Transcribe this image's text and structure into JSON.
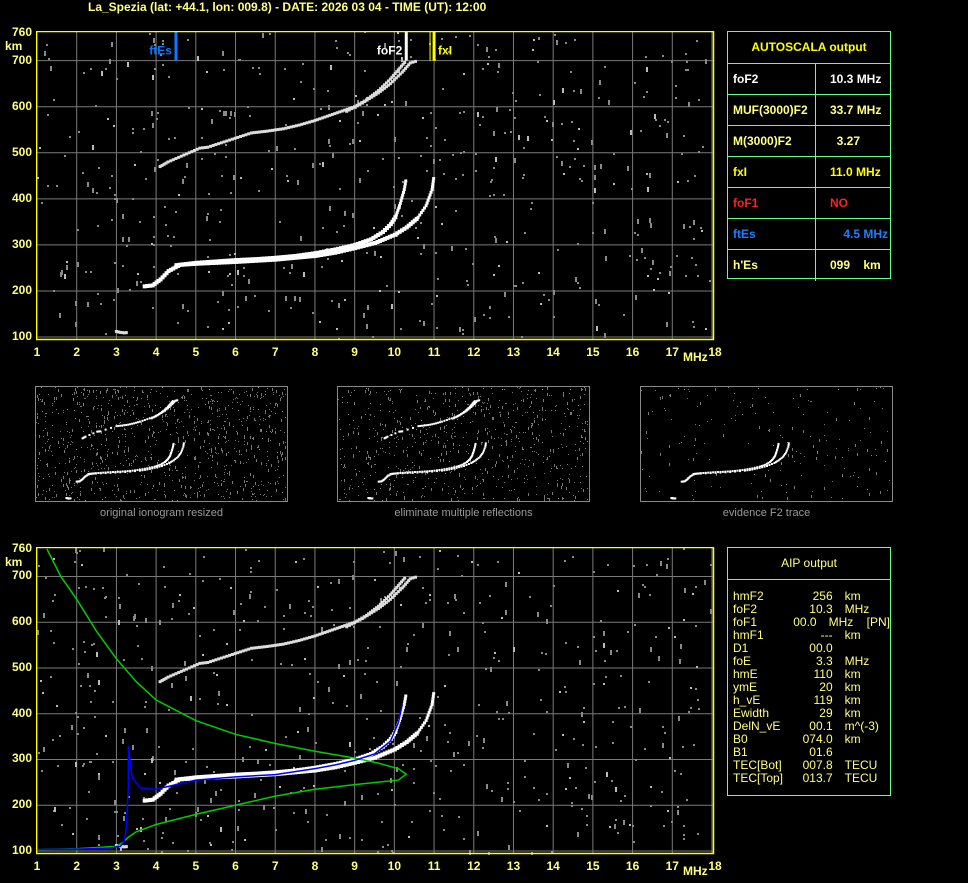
{
  "header": {
    "title": "La_Spezia (lat: +44.1, lon: 009.8) - DATE: 2026 03 04 - TIME (UT): 12:00"
  },
  "axes": {
    "y_ticks": [
      "760",
      "700",
      "600",
      "500",
      "400",
      "300",
      "200",
      "100"
    ],
    "y_unit": "km",
    "x_ticks": [
      "1",
      "2",
      "3",
      "4",
      "5",
      "6",
      "7",
      "8",
      "9",
      "10",
      "11",
      "12",
      "13",
      "14",
      "15",
      "16",
      "17",
      "18"
    ],
    "x_unit": "MHz"
  },
  "markers": {
    "ftEs": "ftEs",
    "foF2": "foF2",
    "fxI": "fxI"
  },
  "colors": {
    "frame": "#ffff00",
    "grid": "#808080",
    "trace": "#ffffff",
    "ftEs": "#0a78ff",
    "foF1": "#ff0000",
    "table_border": "#66ff88",
    "profile": "#00cc00",
    "blue_trace": "#0000ff"
  },
  "autoscala": {
    "title": "AUTOSCALA output",
    "rows": [
      {
        "key": "foF2",
        "value": "10.3 MHz",
        "color": "#ffffff"
      },
      {
        "key": "MUF(3000)F2",
        "value": "33.7 MHz",
        "color": "#ffff80"
      },
      {
        "key": "M(3000)F2",
        "value": "  3.27",
        "color": "#ffff80"
      },
      {
        "key": "fxI",
        "value": "11.0 MHz",
        "color": "#ffff00"
      },
      {
        "key": "foF1",
        "value": "NO",
        "color": "#ff2020"
      },
      {
        "key": "ftEs",
        "value": "    4.5 MHz",
        "color": "#1a80ff"
      },
      {
        "key": "h'Es",
        "value": "099    km",
        "color": "#ffff80"
      }
    ]
  },
  "thumbnails": [
    {
      "caption": "original ionogram resized"
    },
    {
      "caption": "eliminate multiple reflections"
    },
    {
      "caption": "evidence F2 trace"
    }
  ],
  "aip": {
    "title": "AIP output",
    "rows": [
      [
        "hmF2",
        "256",
        "km",
        ""
      ],
      [
        "foF2",
        "10.3",
        "MHz",
        ""
      ],
      [
        "foF1",
        "00.0",
        "MHz",
        "[PN]"
      ],
      [
        "hmF1",
        "---",
        "km",
        ""
      ],
      [
        "D1",
        "00.0",
        "",
        ""
      ],
      [
        "foE",
        "3.3",
        "MHz",
        ""
      ],
      [
        "hmE",
        "110",
        "km",
        ""
      ],
      [
        "ymE",
        "20",
        "km",
        ""
      ],
      [
        "h_vE",
        "119",
        "km",
        ""
      ],
      [
        "Ewidth",
        "29",
        "km",
        ""
      ],
      [
        "DelN_vE",
        "00.1",
        "m^(-3)",
        ""
      ],
      [
        "B0",
        "074.0",
        "km",
        ""
      ],
      [
        "B1",
        "01.6",
        "",
        ""
      ],
      [
        "TEC[Bot]",
        "007.8",
        "TECU",
        ""
      ],
      [
        "TEC[Top]",
        "013.7",
        "TECU",
        ""
      ]
    ]
  },
  "chart_data": [
    {
      "type": "scatter",
      "xlabel": "MHz",
      "ylabel": "km",
      "xlim": [
        1,
        18
      ],
      "ylim": [
        100,
        760
      ],
      "grid": true,
      "vlines": [
        {
          "name": "ftEs",
          "x": 4.5
        },
        {
          "name": "foF2",
          "x": 10.3
        },
        {
          "name": "fxI",
          "x": 11.0
        }
      ],
      "series": [
        {
          "points": [
            [
              3.7,
              210
            ],
            [
              3.9,
              212
            ],
            [
              4.1,
              225
            ],
            [
              4.3,
              243
            ],
            [
              4.6,
              257
            ],
            [
              5,
              261
            ],
            [
              5.5,
              264
            ],
            [
              6,
              267
            ],
            [
              6.5,
              269
            ],
            [
              7,
              272
            ],
            [
              7.5,
              276
            ],
            [
              8,
              282
            ],
            [
              8.5,
              290
            ],
            [
              9,
              300
            ],
            [
              9.4,
              312
            ],
            [
              9.7,
              328
            ],
            [
              9.9,
              345
            ],
            [
              10.05,
              365
            ],
            [
              10.15,
              390
            ],
            [
              10.25,
              420
            ],
            [
              10.3,
              445
            ]
          ]
        },
        {
          "points": [
            [
              4.5,
              256
            ],
            [
              5,
              259
            ],
            [
              6,
              263
            ],
            [
              7,
              268
            ],
            [
              8,
              276
            ],
            [
              8.5,
              283
            ],
            [
              9,
              293
            ],
            [
              9.5,
              304
            ],
            [
              10,
              322
            ],
            [
              10.3,
              338
            ],
            [
              10.6,
              360
            ],
            [
              10.8,
              385
            ],
            [
              10.95,
              420
            ],
            [
              11.0,
              450
            ]
          ]
        },
        {
          "points": [
            [
              4.1,
              470
            ],
            [
              4.3,
              480
            ],
            [
              5.1,
              510
            ],
            [
              5.3,
              512
            ],
            [
              6.4,
              543
            ],
            [
              6.8,
              547
            ],
            [
              7.2,
              552
            ],
            [
              7.6,
              560
            ],
            [
              8,
              570
            ],
            [
              8.5,
              585
            ],
            [
              9,
              600
            ],
            [
              9.3,
              615
            ],
            [
              9.6,
              635
            ],
            [
              9.9,
              660
            ],
            [
              10.1,
              680
            ],
            [
              10.3,
              700
            ]
          ]
        },
        {
          "points": [
            [
              8.8,
              590
            ],
            [
              9.2,
              608
            ],
            [
              9.6,
              630
            ],
            [
              9.9,
              650
            ],
            [
              10.2,
              675
            ],
            [
              10.4,
              695
            ],
            [
              10.6,
              700
            ]
          ]
        },
        {
          "points": [
            [
              3.0,
              112
            ],
            [
              3.1,
              110
            ],
            [
              3.2,
              109
            ],
            [
              3.3,
              110
            ]
          ]
        }
      ]
    },
    {
      "type": "line",
      "xlabel": "MHz",
      "ylabel": "km",
      "xlim": [
        1,
        18
      ],
      "ylim": [
        100,
        760
      ],
      "grid": true,
      "series": [
        {
          "points": [
            [
              1.25,
              760
            ],
            [
              1.6,
              700
            ],
            [
              2,
              650
            ],
            [
              2.5,
              580
            ],
            [
              3,
              520
            ],
            [
              3.5,
              470
            ],
            [
              4,
              430
            ],
            [
              5,
              385
            ],
            [
              6,
              355
            ],
            [
              7,
              335
            ],
            [
              8,
              318
            ],
            [
              9,
              303
            ],
            [
              9.6,
              292
            ],
            [
              10.1,
              280
            ],
            [
              10.3,
              268
            ],
            [
              10.1,
              255
            ],
            [
              9,
              245
            ],
            [
              8,
              235
            ],
            [
              7,
              220
            ],
            [
              6,
              200
            ],
            [
              5,
              180
            ],
            [
              4,
              158
            ],
            [
              3.5,
              142
            ],
            [
              3.3,
              130
            ],
            [
              3.15,
              118
            ],
            [
              3,
              110
            ],
            [
              2,
              105
            ],
            [
              1,
              103
            ]
          ]
        },
        {
          "points": [
            [
              1,
              103
            ],
            [
              2,
              104
            ],
            [
              2.8,
              106
            ],
            [
              3.1,
              110
            ],
            [
              3.2,
              122
            ],
            [
              3.25,
              150
            ],
            [
              3.3,
              240
            ],
            [
              3.3,
              330
            ],
            [
              3.4,
              260
            ],
            [
              3.6,
              238
            ],
            [
              4,
              235
            ],
            [
              4.5,
              245
            ],
            [
              5,
              255
            ],
            [
              6,
              262
            ],
            [
              7,
              267
            ],
            [
              8,
              280
            ],
            [
              8.5,
              288
            ],
            [
              9,
              298
            ],
            [
              9.5,
              312
            ],
            [
              9.9,
              340
            ],
            [
              10.1,
              380
            ],
            [
              10.2,
              420
            ]
          ]
        }
      ]
    }
  ]
}
